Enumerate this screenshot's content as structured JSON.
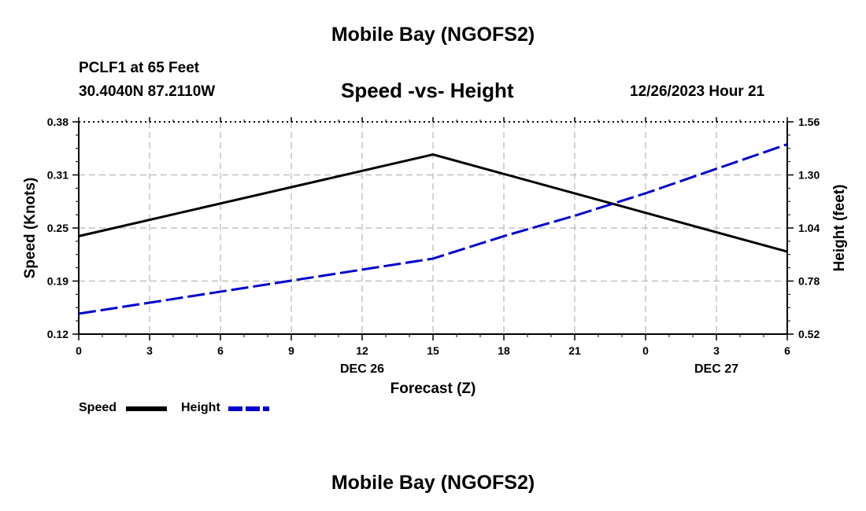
{
  "header": {
    "main_title": "Mobile Bay (NGOFS2)",
    "station": "PCLF1 at 65 Feet",
    "coords": "30.4040N  87.2110W",
    "subtitle": "Speed -vs- Height",
    "datetime": "12/26/2023 Hour 21",
    "footer_title": "Mobile Bay (NGOFS2)"
  },
  "colors": {
    "speed": "#000000",
    "height": "#0000cc",
    "grid": "#b8b8b8"
  },
  "chart_data": {
    "type": "line",
    "title": "Speed -vs- Height",
    "xlabel": "Forecast (Z)",
    "ylabel": "Speed (Knots)",
    "y2label": "Height (feet)",
    "x_ticks": [
      "0",
      "3",
      "6",
      "9",
      "12",
      "15",
      "18",
      "21",
      "0",
      "3",
      "6"
    ],
    "date_labels": [
      {
        "text": "DEC 26",
        "tick_index": 4
      },
      {
        "text": "DEC 27",
        "tick_index": 9
      }
    ],
    "xlim": [
      0,
      30
    ],
    "ylim": [
      0.12,
      0.38
    ],
    "y_ticks": [
      "0.12",
      "0.19",
      "0.25",
      "0.31",
      "0.38"
    ],
    "y2lim": [
      0.52,
      1.56
    ],
    "y2_ticks": [
      "0.52",
      "0.78",
      "1.04",
      "1.30",
      "1.56"
    ],
    "grid": true,
    "legend_position": "bottom-left",
    "series": [
      {
        "name": "Speed",
        "axis": "left",
        "style": "solid",
        "x": [
          0,
          15,
          30
        ],
        "values": [
          0.24,
          0.34,
          0.221
        ]
      },
      {
        "name": "Height",
        "axis": "right",
        "style": "dashed",
        "x": [
          0,
          15,
          18,
          21,
          24,
          27,
          30
        ],
        "values": [
          0.62,
          0.89,
          1.0,
          1.1,
          1.21,
          1.33,
          1.45
        ]
      }
    ]
  }
}
